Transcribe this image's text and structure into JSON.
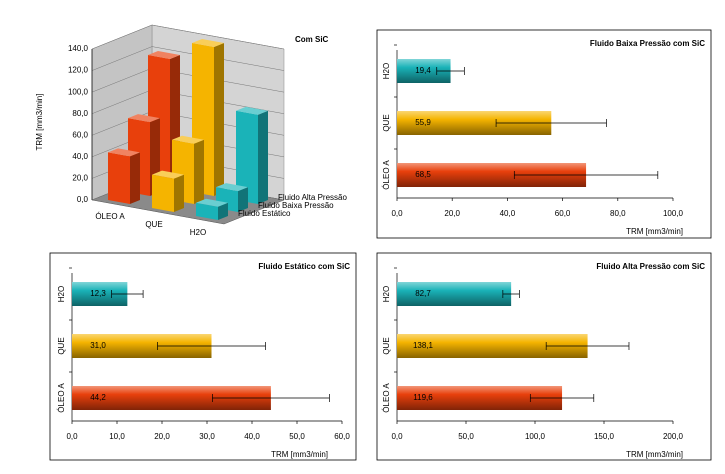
{
  "chart_data": [
    {
      "type": "bar3d",
      "title": "Com SiC",
      "ylabel": "TRM [mm3/min]",
      "categories": [
        "ÓLEO A",
        "QUE",
        "H2O"
      ],
      "colors": [
        "#e8400c",
        "#f5b400",
        "#1ab3b8"
      ],
      "series": [
        {
          "name": "Fluido Estático",
          "values": [
            44.2,
            31.0,
            12.3
          ]
        },
        {
          "name": "Fluido Baixa Pressão",
          "values": [
            68.5,
            55.9,
            19.4
          ]
        },
        {
          "name": "Fluido Alta Pressão",
          "values": [
            119.6,
            138.1,
            82.7
          ]
        }
      ],
      "ylim": [
        0,
        140
      ],
      "yticks": [
        {
          "value": 0,
          "label": "0,0"
        },
        {
          "value": 20,
          "label": "20,0"
        },
        {
          "value": 40,
          "label": "40,0"
        },
        {
          "value": 60,
          "label": "60,0"
        },
        {
          "value": 80,
          "label": "80,0"
        },
        {
          "value": 100,
          "label": "100,0"
        },
        {
          "value": 120,
          "label": "120,0"
        },
        {
          "value": 140,
          "label": "140,0"
        }
      ]
    },
    {
      "type": "bar",
      "title": "Fluido Baixa Pressão com SiC",
      "xlabel": "TRM [mm3/min]",
      "categories": [
        "H2O",
        "QUE",
        "ÓLEO A"
      ],
      "colors": [
        "#1ab3b8",
        "#f5b400",
        "#e8400c"
      ],
      "values": [
        19.4,
        55.9,
        68.5
      ],
      "value_labels": [
        "19,4",
        "55,9",
        "68,5"
      ],
      "errors": [
        5,
        20,
        26
      ],
      "xlim": [
        0,
        100
      ],
      "xticks": [
        {
          "value": 0,
          "label": "0,0"
        },
        {
          "value": 20,
          "label": "20,0"
        },
        {
          "value": 40,
          "label": "40,0"
        },
        {
          "value": 60,
          "label": "60,0"
        },
        {
          "value": 80,
          "label": "80,0"
        },
        {
          "value": 100,
          "label": "100,0"
        }
      ]
    },
    {
      "type": "bar",
      "title": "Fluido Estático com SiC",
      "xlabel": "TRM [mm3/min]",
      "categories": [
        "H2O",
        "QUE",
        "ÓLEO A"
      ],
      "colors": [
        "#1ab3b8",
        "#f5b400",
        "#e8400c"
      ],
      "values": [
        12.3,
        31.0,
        44.2
      ],
      "value_labels": [
        "12,3",
        "31,0",
        "44,2"
      ],
      "errors": [
        3.5,
        12,
        13
      ],
      "xlim": [
        0,
        60
      ],
      "xticks": [
        {
          "value": 0,
          "label": "0,0"
        },
        {
          "value": 10,
          "label": "10,0"
        },
        {
          "value": 20,
          "label": "20,0"
        },
        {
          "value": 30,
          "label": "30,0"
        },
        {
          "value": 40,
          "label": "40,0"
        },
        {
          "value": 50,
          "label": "50,0"
        },
        {
          "value": 60,
          "label": "60,0"
        }
      ]
    },
    {
      "type": "bar",
      "title": "Fluido Alta Pressão com SiC",
      "xlabel": "TRM [mm3/min]",
      "categories": [
        "H2O",
        "QUE",
        "ÓLEO A"
      ],
      "colors": [
        "#1ab3b8",
        "#f5b400",
        "#e8400c"
      ],
      "values": [
        82.7,
        138.1,
        119.6
      ],
      "value_labels": [
        "82,7",
        "138,1",
        "119,6"
      ],
      "errors": [
        6,
        30,
        23
      ],
      "xlim": [
        0,
        200
      ],
      "xticks": [
        {
          "value": 0,
          "label": "0,0"
        },
        {
          "value": 50,
          "label": "50,0"
        },
        {
          "value": 100,
          "label": "100,0"
        },
        {
          "value": 150,
          "label": "150,0"
        },
        {
          "value": 200,
          "label": "200,0"
        }
      ]
    }
  ]
}
